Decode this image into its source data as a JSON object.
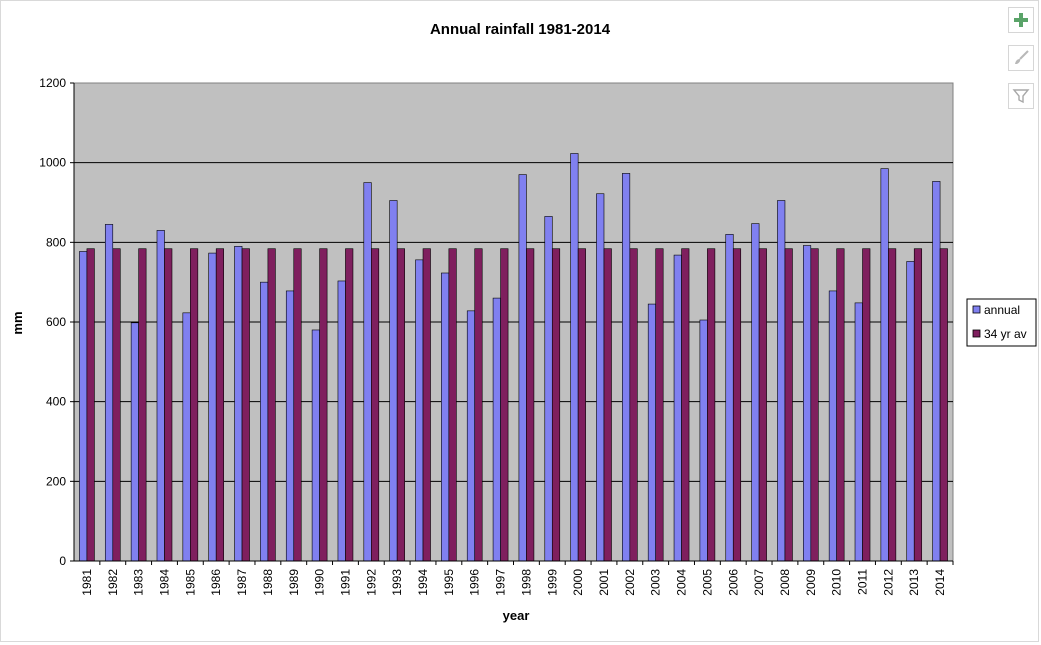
{
  "chart_data": {
    "type": "bar",
    "title": "Annual rainfall 1981-2014",
    "xlabel": "year",
    "ylabel": "mm",
    "ylim": [
      0,
      1200
    ],
    "yticks": [
      "0",
      "200",
      "400",
      "600",
      "800",
      "1000",
      "1200"
    ],
    "grid": true,
    "legend_position": "right",
    "categories": [
      "1981",
      "1982",
      "1983",
      "1984",
      "1985",
      "1986",
      "1987",
      "1988",
      "1989",
      "1990",
      "1991",
      "1992",
      "1993",
      "1994",
      "1995",
      "1996",
      "1997",
      "1998",
      "1999",
      "2000",
      "2001",
      "2002",
      "2003",
      "2004",
      "2005",
      "2006",
      "2007",
      "2008",
      "2009",
      "2010",
      "2011",
      "2012",
      "2013",
      "2014"
    ],
    "series": [
      {
        "name": "annual",
        "color": "#8080f0",
        "values": [
          777,
          845,
          598,
          830,
          623,
          773,
          790,
          700,
          678,
          580,
          703,
          950,
          905,
          756,
          723,
          628,
          660,
          970,
          865,
          1023,
          922,
          973,
          645,
          768,
          605,
          820,
          847,
          905,
          792,
          678,
          648,
          985,
          752,
          953
        ]
      },
      {
        "name": "34 yr av",
        "color": "#7f1f5e",
        "values": [
          784,
          784,
          784,
          784,
          784,
          784,
          784,
          784,
          784,
          784,
          784,
          784,
          784,
          784,
          784,
          784,
          784,
          784,
          784,
          784,
          784,
          784,
          784,
          784,
          784,
          784,
          784,
          784,
          784,
          784,
          784,
          784,
          784,
          784
        ]
      }
    ],
    "colors": {
      "plot_background": "#c0c0c0",
      "gridline": "#000000"
    }
  },
  "toolbar": {
    "add_icon": "plus-icon",
    "style_icon": "brush-icon",
    "filter_icon": "filter-icon"
  }
}
